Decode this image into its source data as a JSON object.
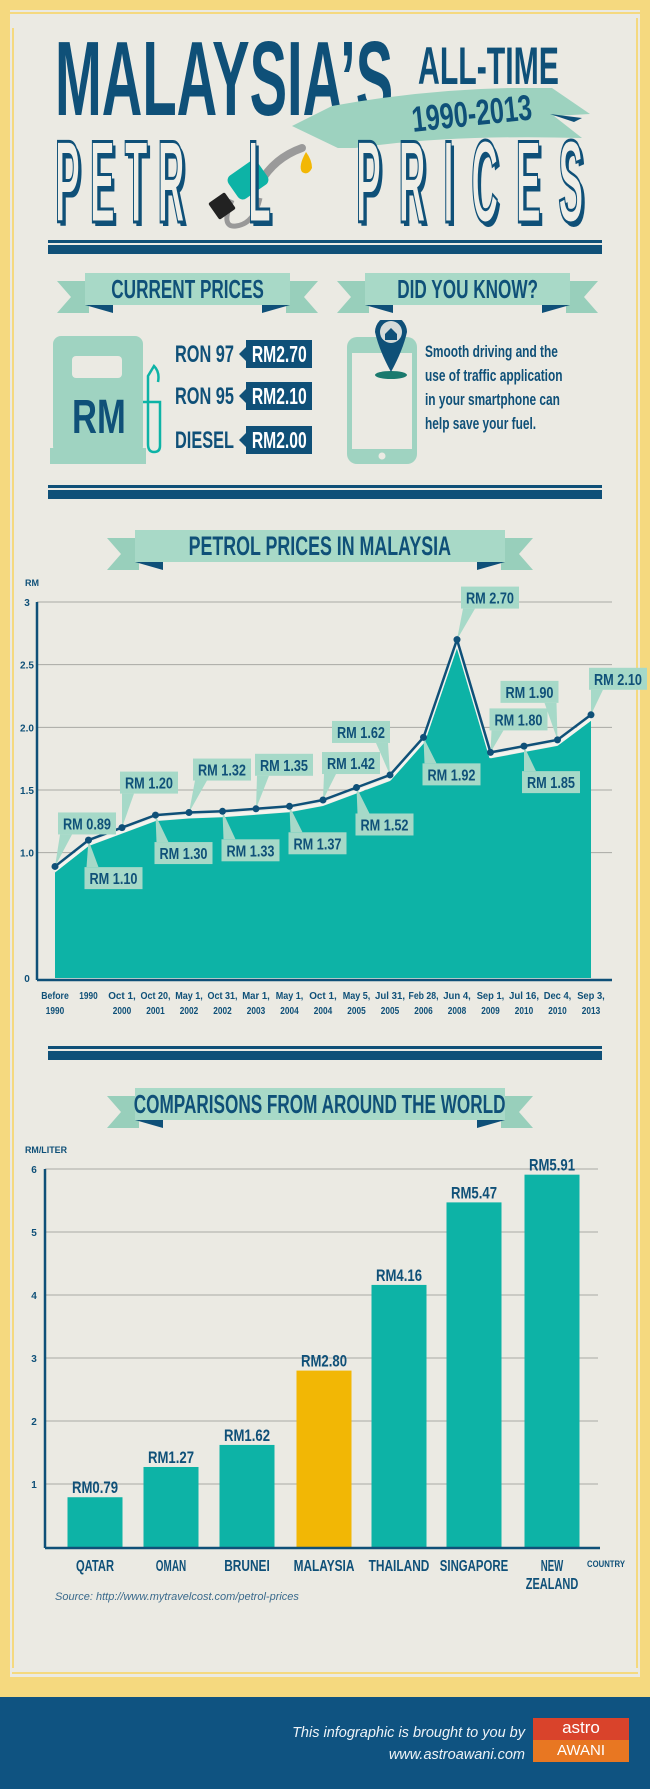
{
  "title": {
    "line1": "MALAYSIA’S",
    "line1_suffix": "ALL-TIME",
    "years": "1990-2013",
    "line2_a": "PETR",
    "line2_b": "L",
    "line2_c": "PRICES"
  },
  "current_prices": {
    "heading": "CURRENT PRICES",
    "pump_label": "RM",
    "items": [
      {
        "label": "RON 97",
        "price": "RM2.70"
      },
      {
        "label": "RON 95",
        "price": "RM2.10"
      },
      {
        "label": "DIESEL",
        "price": "RM2.00"
      }
    ]
  },
  "did_you_know": {
    "heading": "DID YOU KNOW?",
    "lines": [
      "Smooth driving and the",
      "use of traffic application",
      "in your smartphone can",
      "help save your fuel."
    ],
    "icon": "smartphone-map-pin-icon"
  },
  "chart_data": [
    {
      "type": "area",
      "title": "PETROL PRICES IN MALAYSIA",
      "ylabel": "RM",
      "ylim": [
        0,
        3
      ],
      "yticks": [
        "0",
        "1.0",
        "1.5",
        "2.0",
        "2.5",
        "3"
      ],
      "ytick_values": [
        0,
        1,
        1.5,
        2,
        2.5,
        3
      ],
      "grid": true,
      "categories": [
        [
          "Before",
          "1990"
        ],
        [
          "1990"
        ],
        [
          "Oct 1,",
          "2000"
        ],
        [
          "Oct 20,",
          "2001"
        ],
        [
          "May 1,",
          "2002"
        ],
        [
          "Oct 31,",
          "2002"
        ],
        [
          "Mar 1,",
          "2003"
        ],
        [
          "May 1,",
          "2004"
        ],
        [
          "Oct 1,",
          "2004"
        ],
        [
          "May 5,",
          "2005"
        ],
        [
          "Jul 31,",
          "2005"
        ],
        [
          "Feb 28,",
          "2006"
        ],
        [
          "Jun 4,",
          "2008"
        ],
        [
          "Sep 1,",
          "2009"
        ],
        [
          "Jul 16,",
          "2010"
        ],
        [
          "Dec 4,",
          "2010"
        ],
        [
          "Sep 3,",
          "2013"
        ]
      ],
      "values": [
        0.89,
        1.1,
        1.2,
        1.3,
        1.32,
        1.33,
        1.35,
        1.37,
        1.42,
        1.52,
        1.62,
        1.92,
        2.7,
        1.8,
        1.85,
        1.9,
        2.1
      ],
      "labels": [
        "RM 0.89",
        "RM 1.10",
        "RM 1.20",
        "RM 1.30",
        "RM 1.32",
        "RM 1.33",
        "RM 1.35",
        "RM 1.37",
        "RM 1.42",
        "RM 1.52",
        "RM 1.62",
        "RM 1.92",
        "RM 2.70",
        "RM 1.80",
        "RM 1.85",
        "RM 1.90",
        "RM 2.10"
      ]
    },
    {
      "type": "bar",
      "title": "COMPARISONS FROM AROUND THE WORLD",
      "ylabel": "RM/LITER",
      "xlabel": "COUNTRY",
      "ylim": [
        0,
        6
      ],
      "yticks": [
        "1",
        "2",
        "3",
        "4",
        "5",
        "6"
      ],
      "grid": true,
      "categories": [
        "QATAR",
        "OMAN",
        "BRUNEI",
        "MALAYSIA",
        "THAILAND",
        "SINGAPORE",
        "NEW ZEALAND"
      ],
      "values": [
        0.79,
        1.27,
        1.62,
        2.8,
        4.16,
        5.47,
        5.91
      ],
      "labels": [
        "RM0.79",
        "RM1.27",
        "RM1.62",
        "RM2.80",
        "RM4.16",
        "RM5.47",
        "RM5.91"
      ],
      "highlight": "MALAYSIA"
    }
  ],
  "source": "Source: http://www.mytravelcost.com/petrol-prices",
  "footer": {
    "line1": "This infographic is brought to you by",
    "line2": "www.astroawani.com",
    "logo_top": "astro",
    "logo_bottom": "AWANI"
  },
  "colors": {
    "navy": "#0f5078",
    "teal": "#0db3a6",
    "ribbon": "#a6d8c6",
    "highlight": "#f2b705",
    "frame": "#f5d97f",
    "background": "#ebeae3",
    "logo_red": "#d9432b",
    "logo_orange": "#e87722"
  }
}
